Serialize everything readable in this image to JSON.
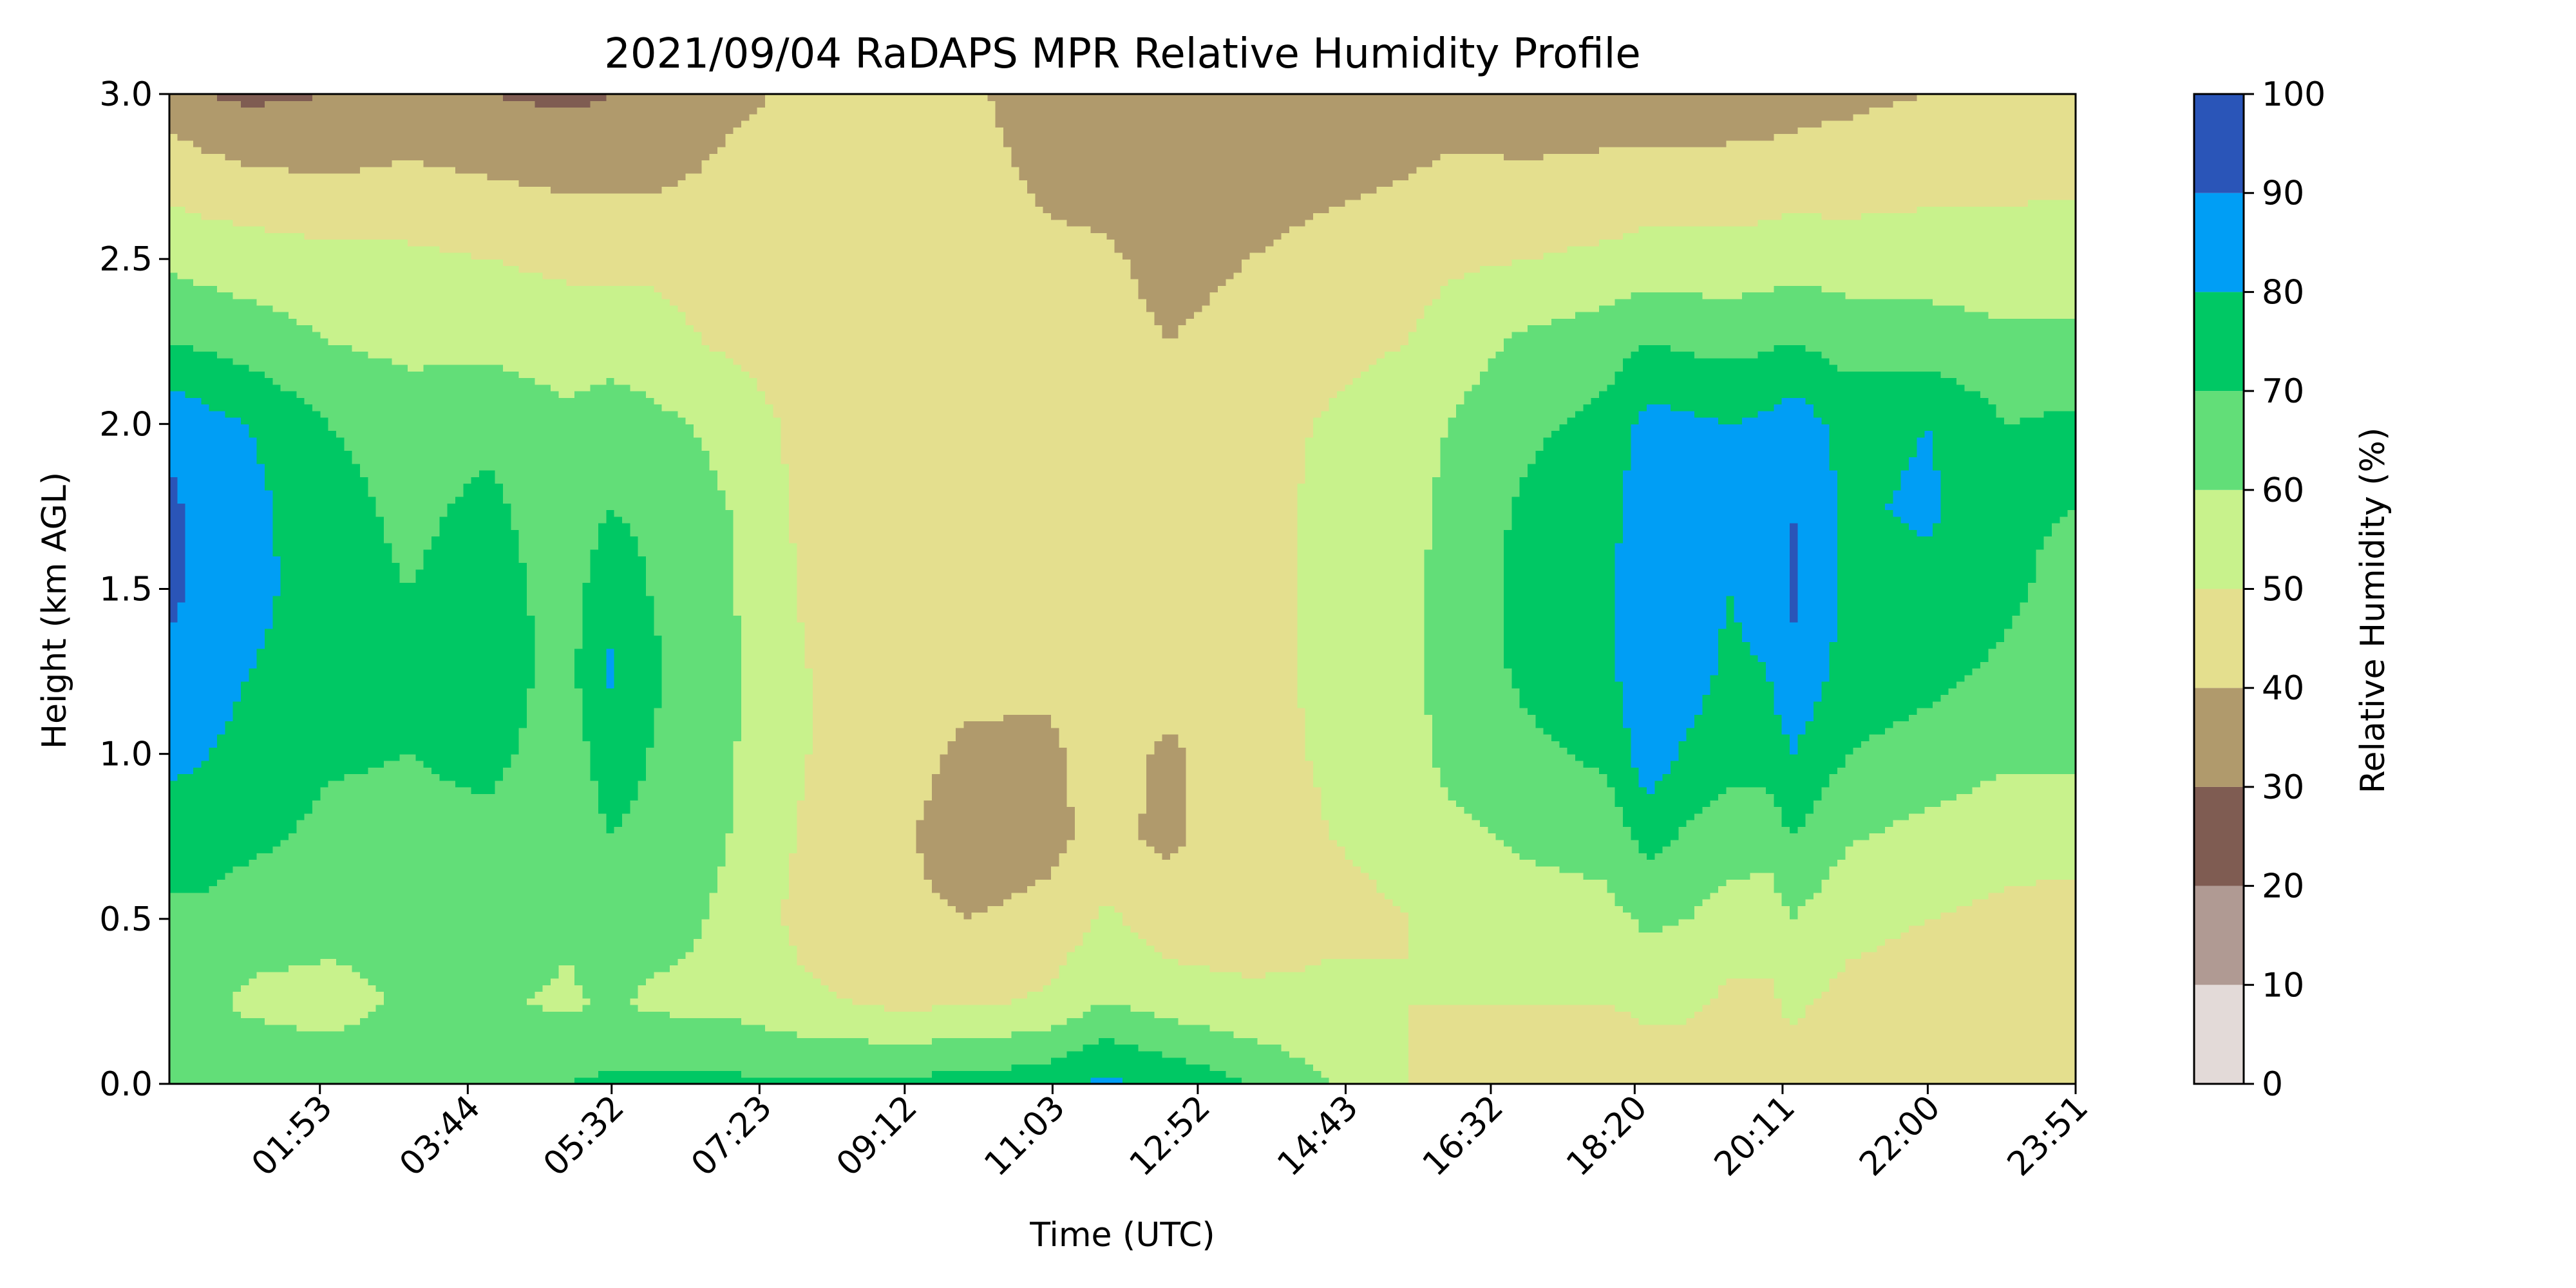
{
  "chart_data": {
    "type": "heatmap",
    "title": "2021/09/04 RaDAPS MPR Relative Humidity Profile",
    "xlabel": "Time (UTC)",
    "ylabel": "Height (km AGL)",
    "xlim_hours": [
      0.0,
      23.85
    ],
    "ylim": [
      0.0,
      3.0
    ],
    "x_ticks": [
      {
        "label": "01:53",
        "hours": 1.8833
      },
      {
        "label": "03:44",
        "hours": 3.7333
      },
      {
        "label": "05:32",
        "hours": 5.5333
      },
      {
        "label": "07:23",
        "hours": 7.3833
      },
      {
        "label": "09:12",
        "hours": 9.2
      },
      {
        "label": "11:03",
        "hours": 11.05
      },
      {
        "label": "12:52",
        "hours": 12.8667
      },
      {
        "label": "14:43",
        "hours": 14.7167
      },
      {
        "label": "16:32",
        "hours": 16.5333
      },
      {
        "label": "18:20",
        "hours": 18.3333
      },
      {
        "label": "20:11",
        "hours": 20.1833
      },
      {
        "label": "22:00",
        "hours": 22.0
      },
      {
        "label": "23:51",
        "hours": 23.85
      }
    ],
    "y_ticks": [
      {
        "label": "0.0",
        "value": 0.0
      },
      {
        "label": "0.5",
        "value": 0.5
      },
      {
        "label": "1.0",
        "value": 1.0
      },
      {
        "label": "1.5",
        "value": 1.5
      },
      {
        "label": "2.0",
        "value": 2.0
      },
      {
        "label": "2.5",
        "value": 2.5
      },
      {
        "label": "3.0",
        "value": 3.0
      }
    ],
    "colorbar": {
      "label": "Relative Humidity (%)",
      "levels": [
        0,
        10,
        20,
        30,
        40,
        50,
        60,
        70,
        80,
        90,
        100
      ],
      "colors": [
        "#e3dad8",
        "#b09a93",
        "#7f5c52",
        "#b09a6c",
        "#e4df8e",
        "#c8f28c",
        "#62de78",
        "#00c864",
        "#009ef5",
        "#2a55b8"
      ]
    },
    "grid": false,
    "rh_samples": {
      "heights_km": [
        0.0,
        0.25,
        0.5,
        0.75,
        1.0,
        1.25,
        1.5,
        1.75,
        2.0,
        2.25,
        2.5,
        2.75,
        3.0
      ],
      "times_hours": [
        0.0,
        0.5,
        1.0,
        2.0,
        3.0,
        4.0,
        5.0,
        5.5,
        6.0,
        7.0,
        8.0,
        9.0,
        10.0,
        11.0,
        11.7,
        12.5,
        13.5,
        14.5,
        15.5,
        16.0,
        17.0,
        18.0,
        18.5,
        19.0,
        19.5,
        20.0,
        20.3,
        21.0,
        22.0,
        23.0,
        23.85
      ],
      "columns": [
        [
          66,
          62,
          68,
          74,
          83,
          88,
          92,
          92,
          88,
          70,
          58,
          46,
          35
        ],
        [
          66,
          62,
          68,
          74,
          80,
          85,
          87,
          86,
          83,
          68,
          56,
          44,
          30
        ],
        [
          68,
          58,
          65,
          72,
          76,
          80,
          84,
          83,
          80,
          65,
          55,
          42,
          28
        ],
        [
          68,
          55,
          65,
          68,
          71,
          73,
          73,
          73,
          70,
          60,
          53,
          40,
          30
        ],
        [
          67,
          62,
          65,
          68,
          70,
          70,
          70,
          68,
          66,
          57,
          52,
          42,
          32
        ],
        [
          68,
          62,
          66,
          68,
          72,
          74,
          74,
          72,
          68,
          57,
          50,
          40,
          30
        ],
        [
          70,
          58,
          62,
          64,
          66,
          67,
          66,
          64,
          62,
          55,
          48,
          38,
          28
        ],
        [
          72,
          62,
          68,
          70,
          74,
          82,
          76,
          70,
          66,
          55,
          48,
          38,
          30
        ],
        [
          72,
          58,
          65,
          68,
          70,
          72,
          70,
          68,
          63,
          54,
          48,
          38,
          30
        ],
        [
          72,
          57,
          58,
          60,
          61,
          62,
          61,
          60,
          57,
          48,
          45,
          42,
          38
        ],
        [
          71,
          52,
          46,
          48,
          50,
          50,
          48,
          47,
          46,
          44,
          44,
          43,
          42
        ],
        [
          72,
          48,
          42,
          42,
          44,
          44,
          45,
          46,
          44,
          44,
          43,
          42,
          41
        ],
        [
          74,
          48,
          40,
          36,
          38,
          43,
          44,
          44,
          43,
          44,
          43,
          42,
          41
        ],
        [
          76,
          52,
          42,
          38,
          38,
          42,
          44,
          44,
          43,
          42,
          41,
          39,
          37
        ],
        [
          82,
          60,
          52,
          42,
          45,
          47,
          46,
          46,
          44,
          42,
          41,
          38,
          35
        ],
        [
          78,
          55,
          45,
          38,
          38,
          45,
          46,
          45,
          44,
          40,
          38,
          35,
          33
        ],
        [
          70,
          52,
          45,
          46,
          47,
          47,
          47,
          47,
          46,
          42,
          40,
          36,
          33
        ],
        [
          60,
          52,
          48,
          50,
          51,
          52,
          52,
          52,
          51,
          47,
          43,
          38,
          33
        ],
        [
          50,
          50,
          50,
          52,
          56,
          57,
          57,
          56,
          55,
          50,
          45,
          40,
          34
        ],
        [
          48,
          50,
          52,
          57,
          63,
          64,
          64,
          63,
          60,
          55,
          48,
          42,
          35
        ],
        [
          46,
          50,
          55,
          62,
          68,
          72,
          73,
          72,
          68,
          62,
          50,
          42,
          33
        ],
        [
          45,
          50,
          57,
          64,
          72,
          77,
          78,
          77,
          73,
          66,
          52,
          43,
          34
        ],
        [
          45,
          52,
          62,
          74,
          86,
          90,
          88,
          86,
          84,
          70,
          54,
          44,
          34
        ],
        [
          44,
          52,
          60,
          68,
          78,
          85,
          86,
          85,
          82,
          68,
          54,
          44,
          33
        ],
        [
          45,
          48,
          56,
          65,
          73,
          78,
          80,
          82,
          80,
          67,
          54,
          44,
          34
        ],
        [
          45,
          48,
          54,
          64,
          74,
          80,
          84,
          84,
          82,
          68,
          55,
          44,
          35
        ],
        [
          45,
          52,
          60,
          70,
          80,
          88,
          92,
          90,
          86,
          70,
          56,
          45,
          36
        ],
        [
          45,
          47,
          53,
          61,
          70,
          76,
          78,
          78,
          76,
          66,
          55,
          45,
          38
        ],
        [
          45,
          45,
          50,
          57,
          66,
          73,
          77,
          82,
          80,
          65,
          55,
          47,
          40
        ],
        [
          45,
          45,
          48,
          53,
          62,
          68,
          72,
          72,
          70,
          62,
          54,
          48,
          42
        ],
        [
          50,
          45,
          47,
          53,
          62,
          64,
          66,
          70,
          72,
          62,
          55,
          48,
          42
        ]
      ]
    }
  }
}
